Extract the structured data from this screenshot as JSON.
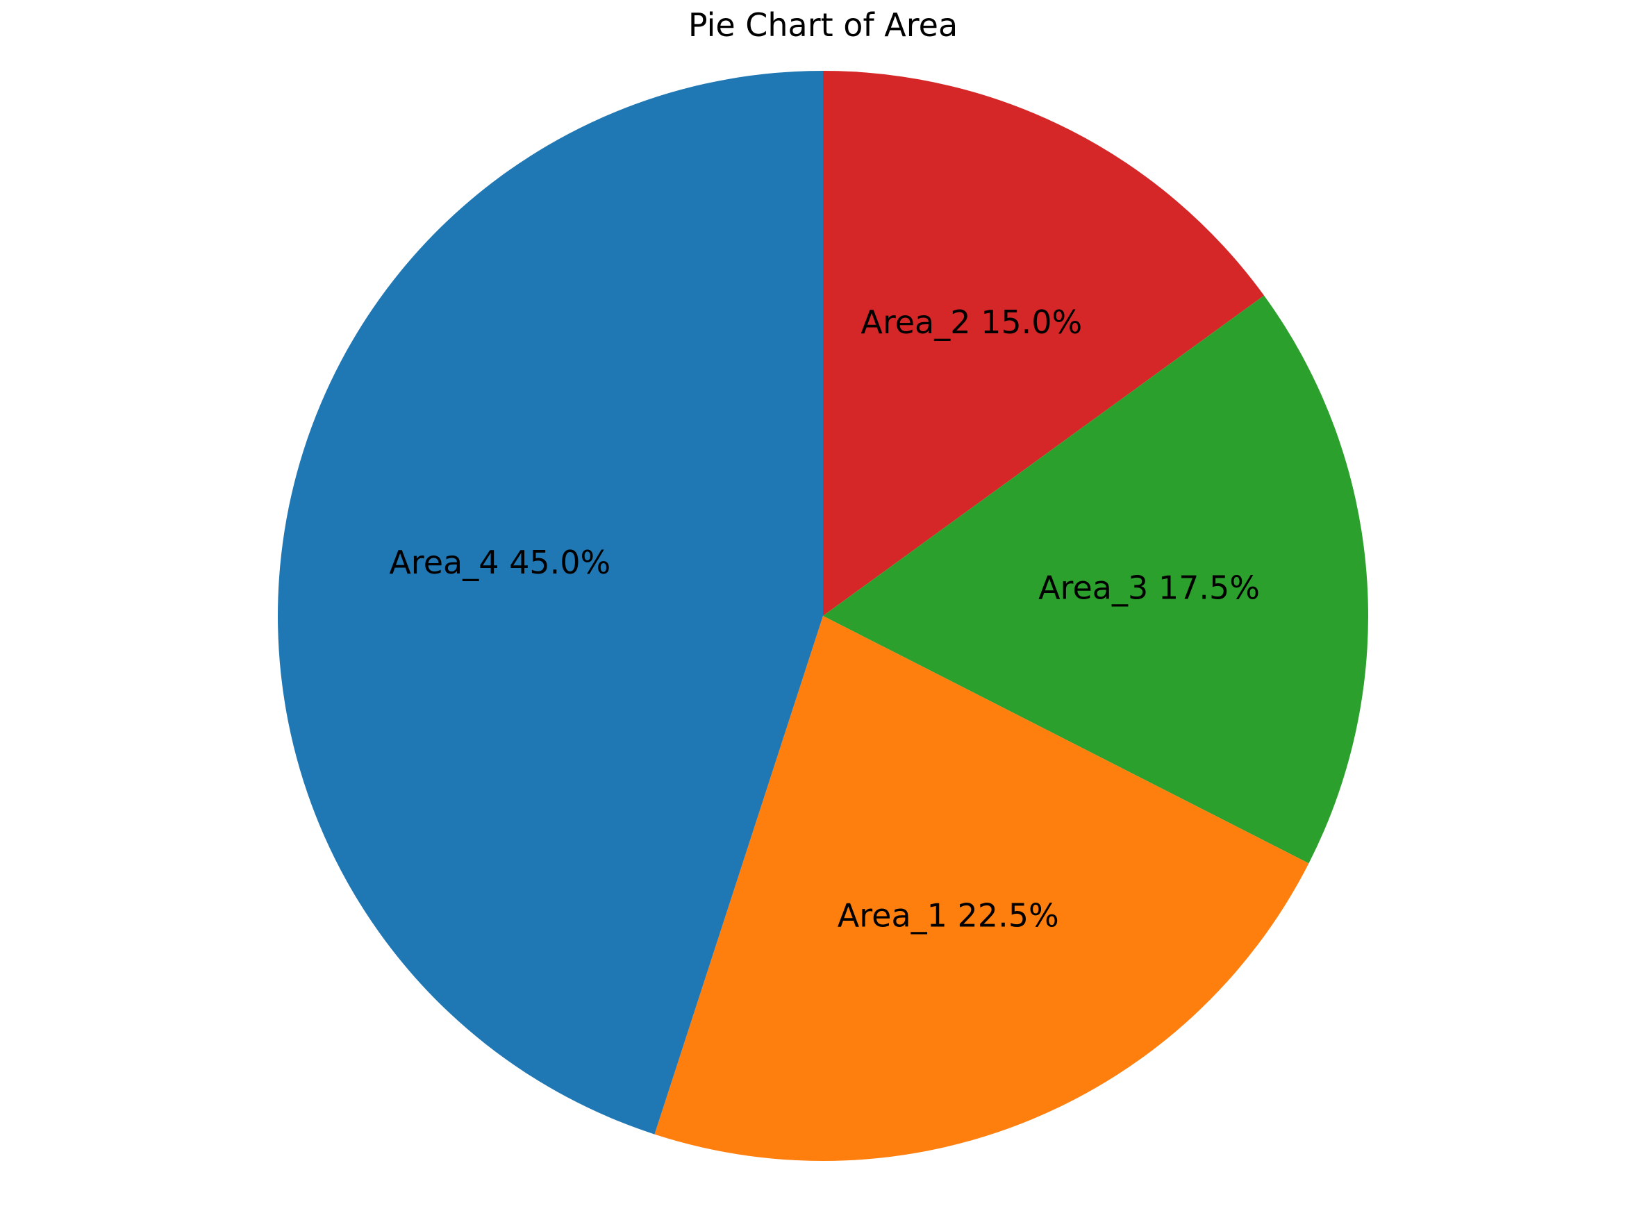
{
  "chart_data": {
    "type": "pie",
    "title": "Pie Chart of Area",
    "start_angle_deg": 90,
    "direction": "clockwise",
    "slices": [
      {
        "label": "Area_2",
        "value": 15.0,
        "percent_label": "15.0%",
        "color": "#d62728"
      },
      {
        "label": "Area_3",
        "value": 17.5,
        "percent_label": "17.5%",
        "color": "#2ca02c"
      },
      {
        "label": "Area_1",
        "value": 22.5,
        "percent_label": "22.5%",
        "color": "#ff7f0e"
      },
      {
        "label": "Area_4",
        "value": 45.0,
        "percent_label": "45.0%",
        "color": "#1f77b4"
      }
    ]
  }
}
